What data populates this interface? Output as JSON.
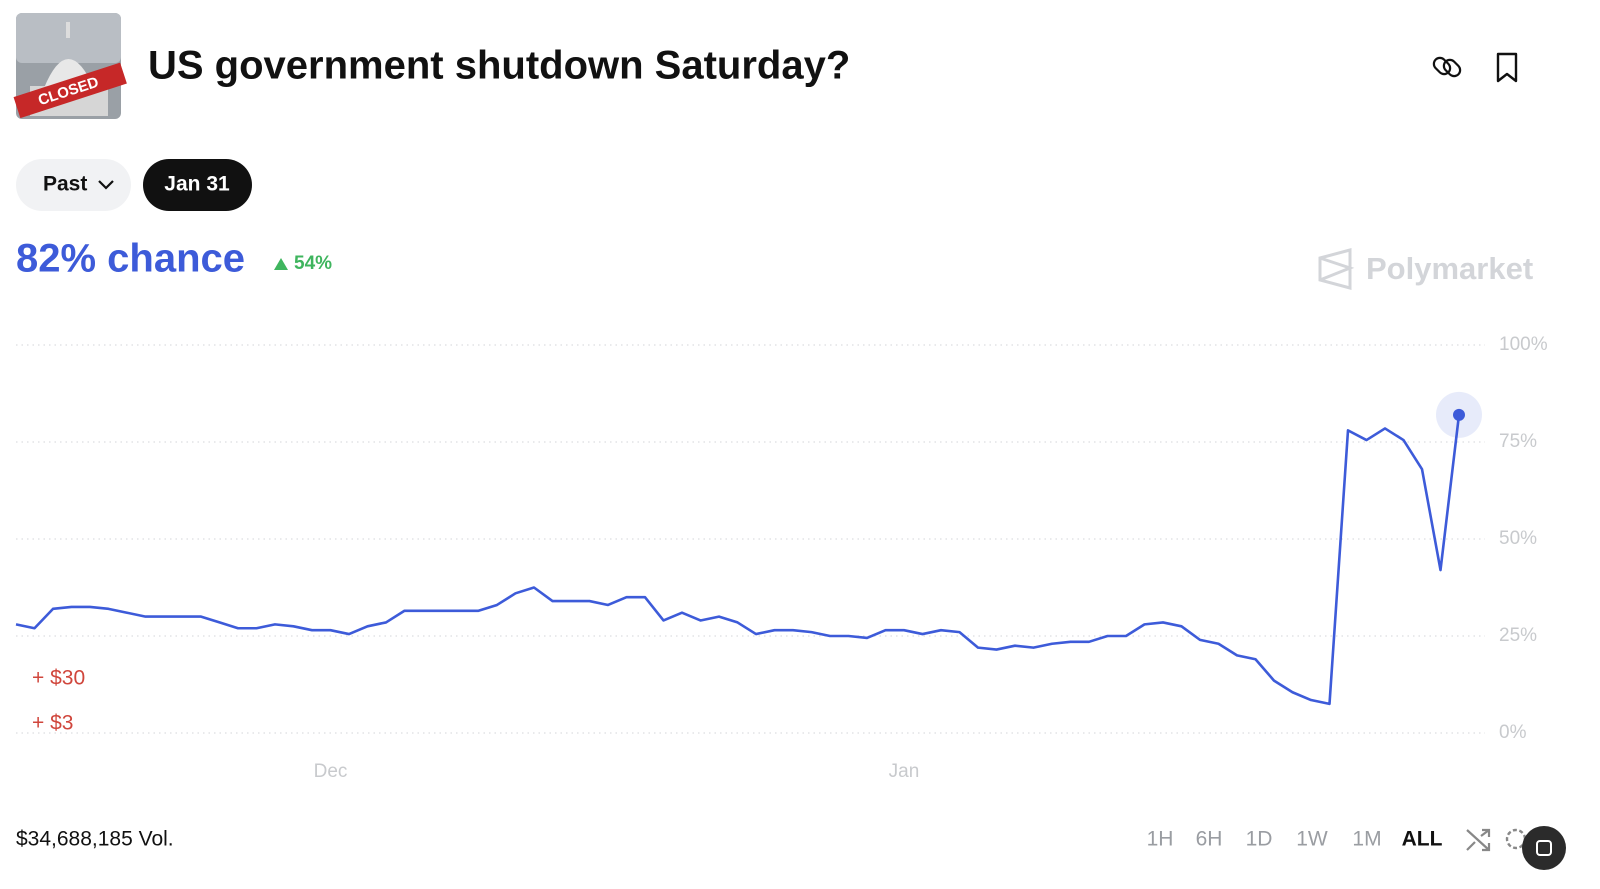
{
  "header": {
    "title": "US government shutdown Saturday?",
    "image_label": "CLOSED"
  },
  "filters": {
    "past": "Past",
    "date": "Jan 31"
  },
  "summary": {
    "chance": "82% chance",
    "change": "54%"
  },
  "watermark": "Polymarket",
  "chart_data": {
    "type": "line",
    "color": "#3d5bd9",
    "categories": [
      null,
      null,
      null,
      null,
      null,
      null,
      null,
      null,
      null,
      null,
      null,
      null,
      null,
      null,
      null,
      null,
      null,
      "Dec",
      null,
      null,
      null,
      null,
      null,
      null,
      null,
      null,
      null,
      null,
      null,
      null,
      null,
      null,
      null,
      null,
      null,
      null,
      null,
      null,
      null,
      null,
      null,
      null,
      null,
      null,
      null,
      null,
      null,
      null,
      "Jan",
      null,
      null,
      null,
      null,
      null,
      null,
      null,
      null,
      null,
      null,
      null,
      null,
      null,
      null,
      null,
      null,
      null,
      null,
      null,
      null,
      null,
      null,
      null,
      null,
      null,
      null,
      null,
      null,
      null,
      null
    ],
    "values": [
      28,
      27,
      32,
      32.5,
      32.5,
      32,
      31,
      30,
      30,
      30,
      30,
      28.5,
      27,
      27,
      28,
      27.5,
      26.5,
      26.5,
      25.5,
      27.5,
      28.5,
      31.5,
      31.5,
      31.5,
      31.5,
      31.5,
      33,
      36,
      37.5,
      34,
      34,
      34,
      33,
      35,
      35,
      29,
      31,
      29,
      30,
      28.5,
      25.5,
      26.5,
      26.5,
      26,
      25,
      25,
      24.5,
      26.5,
      26.5,
      25.5,
      26.5,
      26,
      22,
      21.5,
      22.5,
      22,
      23,
      23.5,
      23.5,
      25,
      25,
      28,
      28.5,
      27.5,
      24,
      23,
      20,
      19,
      13.5,
      10.5,
      8.5,
      7.5,
      78,
      75.5,
      78.5,
      75.5,
      68,
      42,
      82
    ],
    "ylim": [
      0,
      100
    ],
    "yticks": [
      {
        "value": 0,
        "label": "0%"
      },
      {
        "value": 25,
        "label": "25%"
      },
      {
        "value": 50,
        "label": "50%"
      },
      {
        "value": 75,
        "label": "75%"
      },
      {
        "value": 100,
        "label": "100%"
      }
    ],
    "grid": true,
    "annotations": [
      "+ $30",
      "+ $3"
    ]
  },
  "footer": {
    "volume": "$34,688,185 Vol.",
    "ranges": [
      "1H",
      "6H",
      "1D",
      "1W",
      "1M",
      "ALL"
    ],
    "selected": "ALL"
  }
}
